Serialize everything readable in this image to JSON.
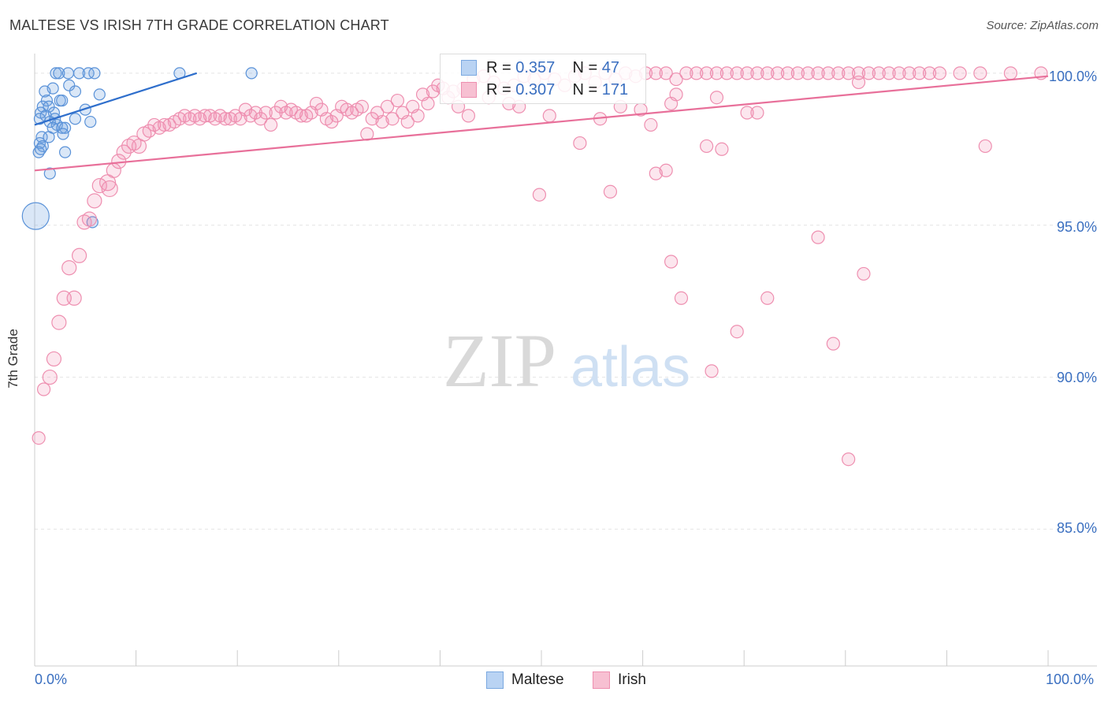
{
  "chart_data": {
    "type": "scatter",
    "title": "MALTESE VS IRISH 7TH GRADE CORRELATION CHART",
    "source": "Source: ZipAtlas.com",
    "xlabel": "",
    "ylabel": "7th Grade",
    "xlim": [
      0,
      100
    ],
    "ylim": [
      80.5,
      100.8
    ],
    "x_tick_labels": [
      "0.0%",
      "100.0%"
    ],
    "y_tick_values": [
      85,
      90,
      95,
      100
    ],
    "y_tick_labels": [
      "85.0%",
      "90.0%",
      "95.0%",
      "100.0%"
    ],
    "grid": true,
    "watermark": {
      "zip": "ZIP",
      "atlas": "atlas"
    },
    "colors": {
      "maltese": "#6a9fe0",
      "irish": "#f08fb0",
      "maltese_line": "#2f6fcc",
      "irish_line": "#e8709a",
      "tick_text": "#3a6fc0"
    },
    "legend": {
      "position": "top-center",
      "r_label": "R =",
      "n_label": "N =",
      "entries": [
        {
          "name": "Maltese",
          "r": "0.357",
          "n": "47"
        },
        {
          "name": "Irish",
          "r": "0.307",
          "n": "171"
        }
      ]
    },
    "series": [
      {
        "name": "Maltese",
        "color": "#6a9fe0",
        "trendline": {
          "x": [
            0,
            16
          ],
          "y": [
            98.3,
            100.0
          ]
        },
        "points": [
          [
            2.1,
            100
          ],
          [
            2.4,
            100
          ],
          [
            3.3,
            100
          ],
          [
            4.4,
            100
          ],
          [
            5.3,
            100
          ],
          [
            5.9,
            100
          ],
          [
            14.3,
            100
          ],
          [
            21.4,
            100
          ],
          [
            3.4,
            99.6
          ],
          [
            1.0,
            99.4
          ],
          [
            1.8,
            99.5
          ],
          [
            4.0,
            99.4
          ],
          [
            6.4,
            99.3
          ],
          [
            1.2,
            99.1
          ],
          [
            2.5,
            99.1
          ],
          [
            2.7,
            99.1
          ],
          [
            0.8,
            98.9
          ],
          [
            1.4,
            98.9
          ],
          [
            0.6,
            98.7
          ],
          [
            1.9,
            98.7
          ],
          [
            5.0,
            98.8
          ],
          [
            0.5,
            98.5
          ],
          [
            1.1,
            98.6
          ],
          [
            2.0,
            98.5
          ],
          [
            4.0,
            98.5
          ],
          [
            1.5,
            98.4
          ],
          [
            2.2,
            98.3
          ],
          [
            1.8,
            98.2
          ],
          [
            2.7,
            98.2
          ],
          [
            3.0,
            98.2
          ],
          [
            5.5,
            98.4
          ],
          [
            0.7,
            97.9
          ],
          [
            1.4,
            97.9
          ],
          [
            2.8,
            98.0
          ],
          [
            0.5,
            97.7
          ],
          [
            0.8,
            97.6
          ],
          [
            0.4,
            97.4
          ],
          [
            0.6,
            97.5
          ],
          [
            3.0,
            97.4
          ],
          [
            1.5,
            96.7
          ],
          [
            0.1,
            95.3
          ],
          [
            5.7,
            95.1
          ]
        ],
        "sizes": [
          14,
          14,
          14,
          14,
          14,
          14,
          14,
          14,
          14,
          14,
          14,
          14,
          14,
          14,
          14,
          14,
          14,
          14,
          14,
          14,
          14,
          14,
          14,
          14,
          14,
          14,
          14,
          14,
          14,
          14,
          14,
          14,
          14,
          14,
          14,
          14,
          14,
          14,
          14,
          14,
          34,
          14
        ]
      },
      {
        "name": "Irish",
        "color": "#f08fb0",
        "trendline": {
          "x": [
            0,
            100
          ],
          "y": [
            96.8,
            99.9
          ]
        },
        "points": [
          [
            0.4,
            88.0
          ],
          [
            0.9,
            89.6
          ],
          [
            1.5,
            90.0
          ],
          [
            1.9,
            90.6
          ],
          [
            2.4,
            91.8
          ],
          [
            2.9,
            92.6
          ],
          [
            3.9,
            92.6
          ],
          [
            3.4,
            93.6
          ],
          [
            4.4,
            94.0
          ],
          [
            4.9,
            95.1
          ],
          [
            5.4,
            95.2
          ],
          [
            5.9,
            95.8
          ],
          [
            6.4,
            96.3
          ],
          [
            7.2,
            96.4
          ],
          [
            7.4,
            96.2
          ],
          [
            7.8,
            96.8
          ],
          [
            8.3,
            97.1
          ],
          [
            8.8,
            97.4
          ],
          [
            9.3,
            97.6
          ],
          [
            9.8,
            97.7
          ],
          [
            10.3,
            97.6
          ],
          [
            10.8,
            98.0
          ],
          [
            11.3,
            98.1
          ],
          [
            11.8,
            98.3
          ],
          [
            12.3,
            98.2
          ],
          [
            12.8,
            98.3
          ],
          [
            13.3,
            98.3
          ],
          [
            13.8,
            98.4
          ],
          [
            14.3,
            98.5
          ],
          [
            14.8,
            98.6
          ],
          [
            15.3,
            98.5
          ],
          [
            15.8,
            98.6
          ],
          [
            16.3,
            98.5
          ],
          [
            16.8,
            98.6
          ],
          [
            17.3,
            98.6
          ],
          [
            17.8,
            98.5
          ],
          [
            18.3,
            98.6
          ],
          [
            18.8,
            98.5
          ],
          [
            19.3,
            98.5
          ],
          [
            19.8,
            98.6
          ],
          [
            20.3,
            98.5
          ],
          [
            20.8,
            98.8
          ],
          [
            21.3,
            98.6
          ],
          [
            21.8,
            98.7
          ],
          [
            22.3,
            98.5
          ],
          [
            22.8,
            98.7
          ],
          [
            23.3,
            98.3
          ],
          [
            23.8,
            98.7
          ],
          [
            24.3,
            98.9
          ],
          [
            24.8,
            98.7
          ],
          [
            25.3,
            98.8
          ],
          [
            25.8,
            98.7
          ],
          [
            26.3,
            98.6
          ],
          [
            26.8,
            98.6
          ],
          [
            27.3,
            98.7
          ],
          [
            27.8,
            99.0
          ],
          [
            28.3,
            98.8
          ],
          [
            28.8,
            98.5
          ],
          [
            29.3,
            98.4
          ],
          [
            29.8,
            98.6
          ],
          [
            30.3,
            98.9
          ],
          [
            30.8,
            98.8
          ],
          [
            31.3,
            98.7
          ],
          [
            31.8,
            98.8
          ],
          [
            32.3,
            98.9
          ],
          [
            32.8,
            98.0
          ],
          [
            33.3,
            98.5
          ],
          [
            33.8,
            98.7
          ],
          [
            34.3,
            98.4
          ],
          [
            34.8,
            98.9
          ],
          [
            35.3,
            98.5
          ],
          [
            35.8,
            99.1
          ],
          [
            36.3,
            98.7
          ],
          [
            36.8,
            98.4
          ],
          [
            37.3,
            98.9
          ],
          [
            37.8,
            98.6
          ],
          [
            38.3,
            99.3
          ],
          [
            38.8,
            99.0
          ],
          [
            39.3,
            99.4
          ],
          [
            39.8,
            99.6
          ],
          [
            40.3,
            99.5
          ],
          [
            40.8,
            99.2
          ],
          [
            41.3,
            99.4
          ],
          [
            42.3,
            99.5
          ],
          [
            43.3,
            99.8
          ],
          [
            44.3,
            99.9
          ],
          [
            45.3,
            99.7
          ],
          [
            46.3,
            99.5
          ],
          [
            41.8,
            98.9
          ],
          [
            42.8,
            98.6
          ],
          [
            44.8,
            99.2
          ],
          [
            47.3,
            99.6
          ],
          [
            48.3,
            99.9
          ],
          [
            49.3,
            99.8
          ],
          [
            50.3,
            100
          ],
          [
            51.3,
            99.8
          ],
          [
            52.3,
            99.6
          ],
          [
            53.3,
            99.9
          ],
          [
            54.3,
            100
          ],
          [
            55.3,
            99.7
          ],
          [
            56.3,
            100
          ],
          [
            57.3,
            99.8
          ],
          [
            58.3,
            100
          ],
          [
            59.3,
            99.9
          ],
          [
            60.3,
            100
          ],
          [
            61.3,
            100
          ],
          [
            62.3,
            100
          ],
          [
            63.3,
            99.8
          ],
          [
            64.3,
            100
          ],
          [
            46.8,
            99.0
          ],
          [
            47.8,
            98.9
          ],
          [
            50.8,
            98.6
          ],
          [
            53.8,
            97.7
          ],
          [
            55.8,
            98.5
          ],
          [
            57.8,
            98.9
          ],
          [
            59.8,
            98.8
          ],
          [
            60.8,
            98.3
          ],
          [
            62.8,
            99.0
          ],
          [
            65.3,
            100
          ],
          [
            66.3,
            100
          ],
          [
            67.3,
            100
          ],
          [
            68.3,
            100
          ],
          [
            69.3,
            100
          ],
          [
            70.3,
            100
          ],
          [
            71.3,
            100
          ],
          [
            72.3,
            100
          ],
          [
            73.3,
            100
          ],
          [
            74.3,
            100
          ],
          [
            75.3,
            100
          ],
          [
            76.3,
            100
          ],
          [
            77.3,
            100
          ],
          [
            78.3,
            100
          ],
          [
            79.3,
            100
          ],
          [
            80.3,
            100
          ],
          [
            81.3,
            100
          ],
          [
            82.3,
            100
          ],
          [
            83.3,
            100
          ],
          [
            84.3,
            100
          ],
          [
            85.3,
            100
          ],
          [
            86.3,
            100
          ],
          [
            87.3,
            100
          ],
          [
            88.3,
            100
          ],
          [
            89.3,
            100
          ],
          [
            91.3,
            100
          ],
          [
            93.3,
            100
          ],
          [
            96.3,
            100
          ],
          [
            99.3,
            100
          ],
          [
            63.3,
            99.3
          ],
          [
            67.3,
            99.2
          ],
          [
            70.3,
            98.7
          ],
          [
            71.3,
            98.7
          ],
          [
            81.3,
            99.7
          ],
          [
            66.3,
            97.6
          ],
          [
            67.8,
            97.5
          ],
          [
            62.3,
            96.8
          ],
          [
            61.3,
            96.7
          ],
          [
            56.8,
            96.1
          ],
          [
            49.8,
            96.0
          ],
          [
            93.8,
            97.6
          ],
          [
            77.3,
            94.6
          ],
          [
            81.8,
            93.4
          ],
          [
            62.8,
            93.8
          ],
          [
            63.8,
            92.6
          ],
          [
            72.3,
            92.6
          ],
          [
            69.3,
            91.5
          ],
          [
            78.8,
            91.1
          ],
          [
            66.8,
            90.2
          ],
          [
            80.3,
            87.3
          ]
        ],
        "sizes": [
          16,
          16,
          18,
          18,
          18,
          18,
          18,
          18,
          18,
          18,
          18,
          18,
          18,
          20,
          20,
          18,
          18,
          18,
          18,
          18,
          18,
          18,
          16,
          16,
          16,
          16,
          16,
          16,
          16,
          16,
          16,
          16,
          16,
          16,
          16,
          16,
          16,
          16,
          16,
          16,
          16,
          16,
          16,
          16,
          16,
          16,
          16,
          16,
          16,
          16,
          16,
          16,
          16,
          16,
          16,
          16,
          16,
          16,
          16,
          16,
          16,
          16,
          16,
          16,
          16,
          16,
          16,
          16,
          16,
          16,
          16,
          16,
          16,
          16,
          16,
          16,
          16,
          16,
          16,
          16,
          16,
          16,
          16,
          16,
          16,
          16,
          16,
          16,
          16,
          16,
          16,
          16,
          16,
          16,
          16,
          16,
          16,
          16,
          16,
          16,
          16,
          16,
          16,
          16,
          16,
          16,
          16,
          16,
          16,
          16,
          16,
          16,
          16,
          16,
          16,
          16,
          16,
          16,
          16,
          16,
          16,
          16,
          16,
          16,
          16,
          16,
          16,
          16,
          16,
          16,
          16,
          16,
          16,
          16,
          16,
          16,
          16,
          16,
          16,
          16,
          16,
          16,
          16,
          16,
          16,
          16,
          16,
          16,
          16,
          16,
          16,
          16,
          16,
          16,
          16,
          16,
          16,
          16,
          16,
          16,
          16,
          16,
          16,
          16,
          16,
          16,
          16,
          16
        ]
      }
    ]
  }
}
